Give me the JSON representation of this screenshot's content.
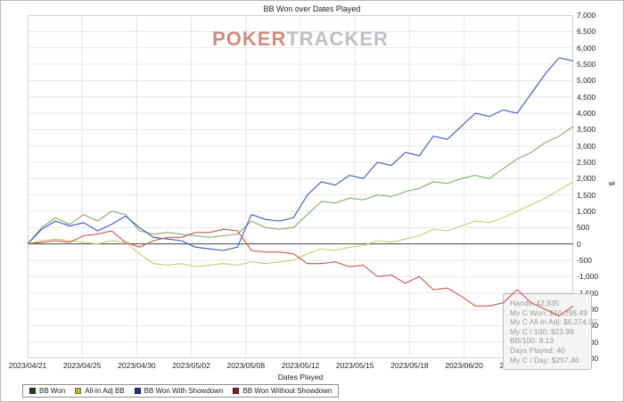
{
  "watermark": {
    "part1": "POKER",
    "part2": "TRACKER"
  },
  "stats_box": {
    "lines": [
      {
        "label": "Hands",
        "value": "42,935"
      },
      {
        "label": "My C Won",
        "value": "$10,298.49"
      },
      {
        "label": "My C All-In Adj",
        "value": "$6,274.07"
      },
      {
        "label": "My C / 100",
        "value": "$23.99"
      },
      {
        "label": "BB/100",
        "value": "8.13"
      },
      {
        "label": "Days Played",
        "value": "40"
      },
      {
        "label": "My C / Day",
        "value": "$257.46"
      }
    ]
  },
  "chart_data": {
    "type": "line",
    "title": "BB Won over Dates Played",
    "xlabel": "Dates Played",
    "ylabel": "$",
    "ylim": [
      -3500,
      7000
    ],
    "ytick_step": 500,
    "grid": true,
    "legend_position": "bottom-left",
    "x_count": 40,
    "x_tick_labels": [
      "2023/04/21",
      "2023/04/25",
      "2023/04/30",
      "2023/05/02",
      "2023/05/08",
      "2023/05/12",
      "2023/05/15",
      "2023/05/18",
      "2023/06/20",
      "2023/06/23",
      "2023/07/04"
    ],
    "zero_line_color": "#4a4a4a",
    "grid_color": "#e7e7e7",
    "series": [
      {
        "name": "BB Won",
        "color": "#85ad68",
        "legend_color": "#1e4620",
        "values": [
          0,
          500,
          800,
          600,
          900,
          700,
          1000,
          900,
          400,
          300,
          350,
          300,
          250,
          200,
          250,
          300,
          700,
          500,
          450,
          500,
          900,
          1300,
          1250,
          1400,
          1350,
          1500,
          1450,
          1600,
          1700,
          1900,
          1850,
          2000,
          2100,
          2000,
          2300,
          2600,
          2800,
          3100,
          3300,
          3600
        ]
      },
      {
        "name": "All-In Adj BB",
        "color": "#c9c973",
        "legend_color": "#b5b53a",
        "values": [
          0,
          100,
          150,
          100,
          50,
          0,
          100,
          50,
          -300,
          -600,
          -650,
          -600,
          -700,
          -650,
          -600,
          -650,
          -550,
          -600,
          -550,
          -500,
          -300,
          -150,
          -200,
          -100,
          -50,
          100,
          50,
          150,
          250,
          450,
          400,
          550,
          700,
          650,
          800,
          1000,
          1200,
          1400,
          1650,
          1900
        ]
      },
      {
        "name": "BB Won With Showdown",
        "color": "#3a55c0",
        "legend_color": "#23347c",
        "values": [
          0,
          450,
          700,
          550,
          650,
          400,
          600,
          850,
          500,
          200,
          150,
          100,
          -100,
          -150,
          -200,
          -100,
          900,
          750,
          700,
          800,
          1500,
          1900,
          1800,
          2100,
          2000,
          2500,
          2400,
          2800,
          2700,
          3300,
          3200,
          3600,
          4000,
          3900,
          4100,
          4000,
          4600,
          5200,
          5700,
          5600
        ]
      },
      {
        "name": "BB Won Without Showdown",
        "color": "#c4584e",
        "legend_color": "#7c2323",
        "values": [
          0,
          50,
          100,
          50,
          250,
          300,
          400,
          50,
          -100,
          100,
          200,
          200,
          350,
          350,
          450,
          400,
          -200,
          -250,
          -250,
          -300,
          -600,
          -600,
          -550,
          -700,
          -650,
          -1000,
          -950,
          -1200,
          -1000,
          -1400,
          -1350,
          -1600,
          -1900,
          -1900,
          -1800,
          -1400,
          -1800,
          -2000,
          -2200,
          -1900
        ]
      }
    ]
  }
}
